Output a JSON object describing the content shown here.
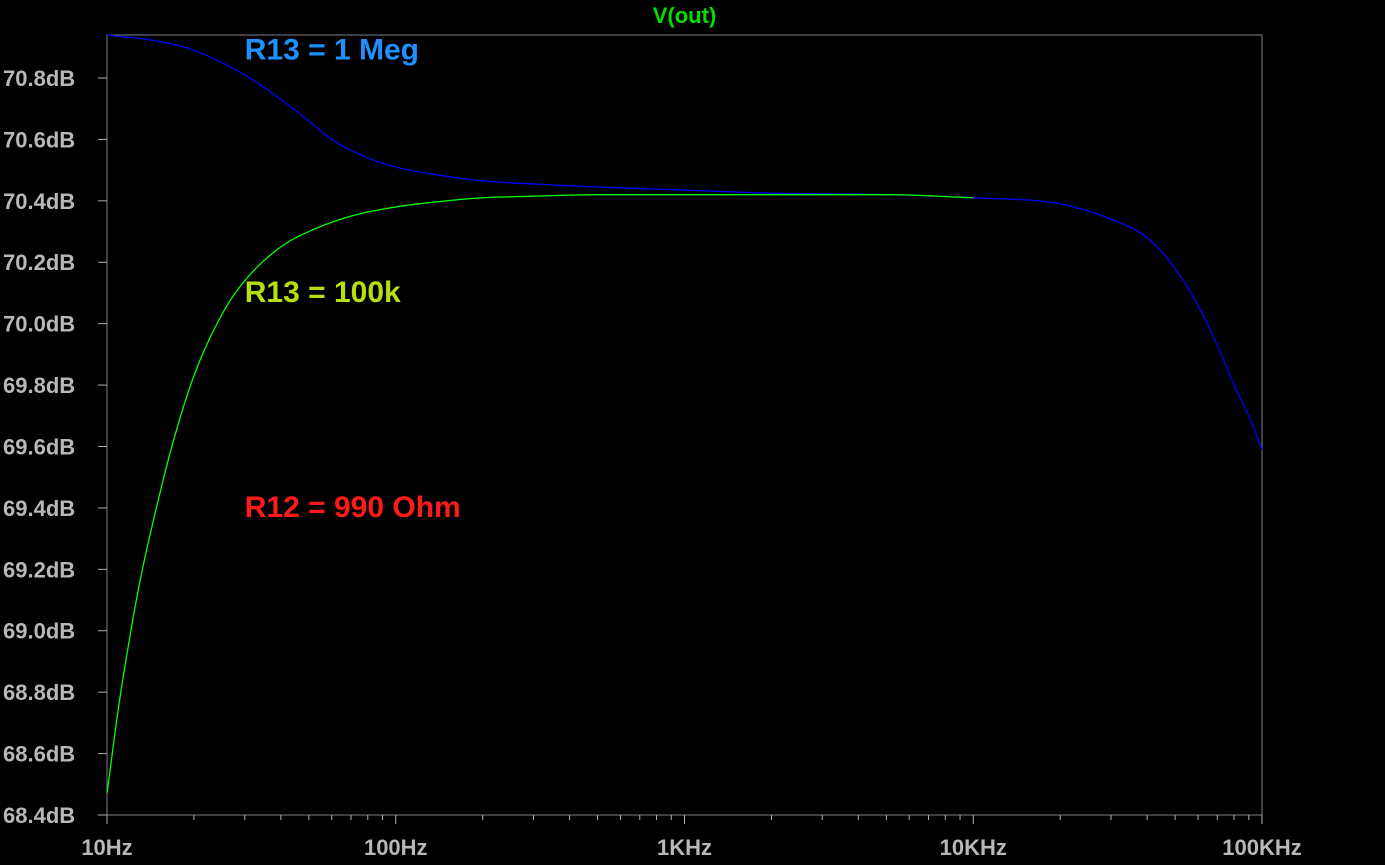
{
  "chart_data": {
    "type": "line",
    "title": "V(out)",
    "title_color": "#00e000",
    "x_scale": "log",
    "xlim": [
      10,
      100000
    ],
    "ylim": [
      68.4,
      70.94
    ],
    "x_ticks": [
      {
        "value": 10,
        "label": "10Hz"
      },
      {
        "value": 100,
        "label": "100Hz"
      },
      {
        "value": 1000,
        "label": "1KHz"
      },
      {
        "value": 10000,
        "label": "10KHz"
      },
      {
        "value": 100000,
        "label": "100KHz"
      }
    ],
    "y_ticks": [
      {
        "value": 68.4,
        "label": "68.4dB"
      },
      {
        "value": 68.6,
        "label": "68.6dB"
      },
      {
        "value": 68.8,
        "label": "68.8dB"
      },
      {
        "value": 69.0,
        "label": "69.0dB"
      },
      {
        "value": 69.2,
        "label": "69.2dB"
      },
      {
        "value": 69.4,
        "label": "69.4dB"
      },
      {
        "value": 69.6,
        "label": "69.6dB"
      },
      {
        "value": 69.8,
        "label": "69.8dB"
      },
      {
        "value": 70.0,
        "label": "70.0dB"
      },
      {
        "value": 70.2,
        "label": "70.2dB"
      },
      {
        "value": 70.4,
        "label": "70.4dB"
      },
      {
        "value": 70.6,
        "label": "70.6dB"
      },
      {
        "value": 70.8,
        "label": "70.8dB"
      }
    ],
    "grid": false,
    "frame_color": "#808080",
    "series": [
      {
        "color": "#0000ff",
        "x": [
          10,
          15,
          20,
          30,
          40,
          50,
          60,
          80,
          100,
          150,
          200,
          300,
          500,
          1000,
          2000,
          5000,
          10000,
          20000,
          30000,
          40000,
          50000,
          60000,
          70000,
          80000,
          90000,
          100000
        ],
        "y": [
          70.94,
          70.92,
          70.89,
          70.81,
          70.73,
          70.66,
          70.6,
          70.54,
          70.51,
          70.48,
          70.465,
          70.455,
          70.445,
          70.435,
          70.425,
          70.42,
          70.41,
          70.39,
          70.34,
          70.28,
          70.18,
          70.06,
          69.93,
          69.8,
          69.7,
          69.59
        ]
      },
      {
        "color": "#00ff00",
        "x": [
          10,
          11,
          12,
          13,
          15,
          17,
          20,
          25,
          30,
          40,
          50,
          70,
          100,
          150,
          200,
          300,
          500,
          1000,
          2000,
          5000,
          10000
        ],
        "y": [
          68.47,
          68.76,
          68.98,
          69.16,
          69.42,
          69.62,
          69.83,
          70.03,
          70.14,
          70.25,
          70.3,
          70.35,
          70.38,
          70.4,
          70.41,
          70.415,
          70.42,
          70.42,
          70.42,
          70.42,
          70.41
        ]
      }
    ],
    "annotations": [
      {
        "text": "R13 = 1 Meg",
        "color": "#1e90ff",
        "x": 30,
        "y": 70.86
      },
      {
        "text": "R13 = 100k",
        "color": "#b4e010",
        "x": 30,
        "y": 70.07
      },
      {
        "text": "R12 = 990 Ohm",
        "color": "#ff1a1a",
        "x": 30,
        "y": 69.37
      }
    ]
  }
}
